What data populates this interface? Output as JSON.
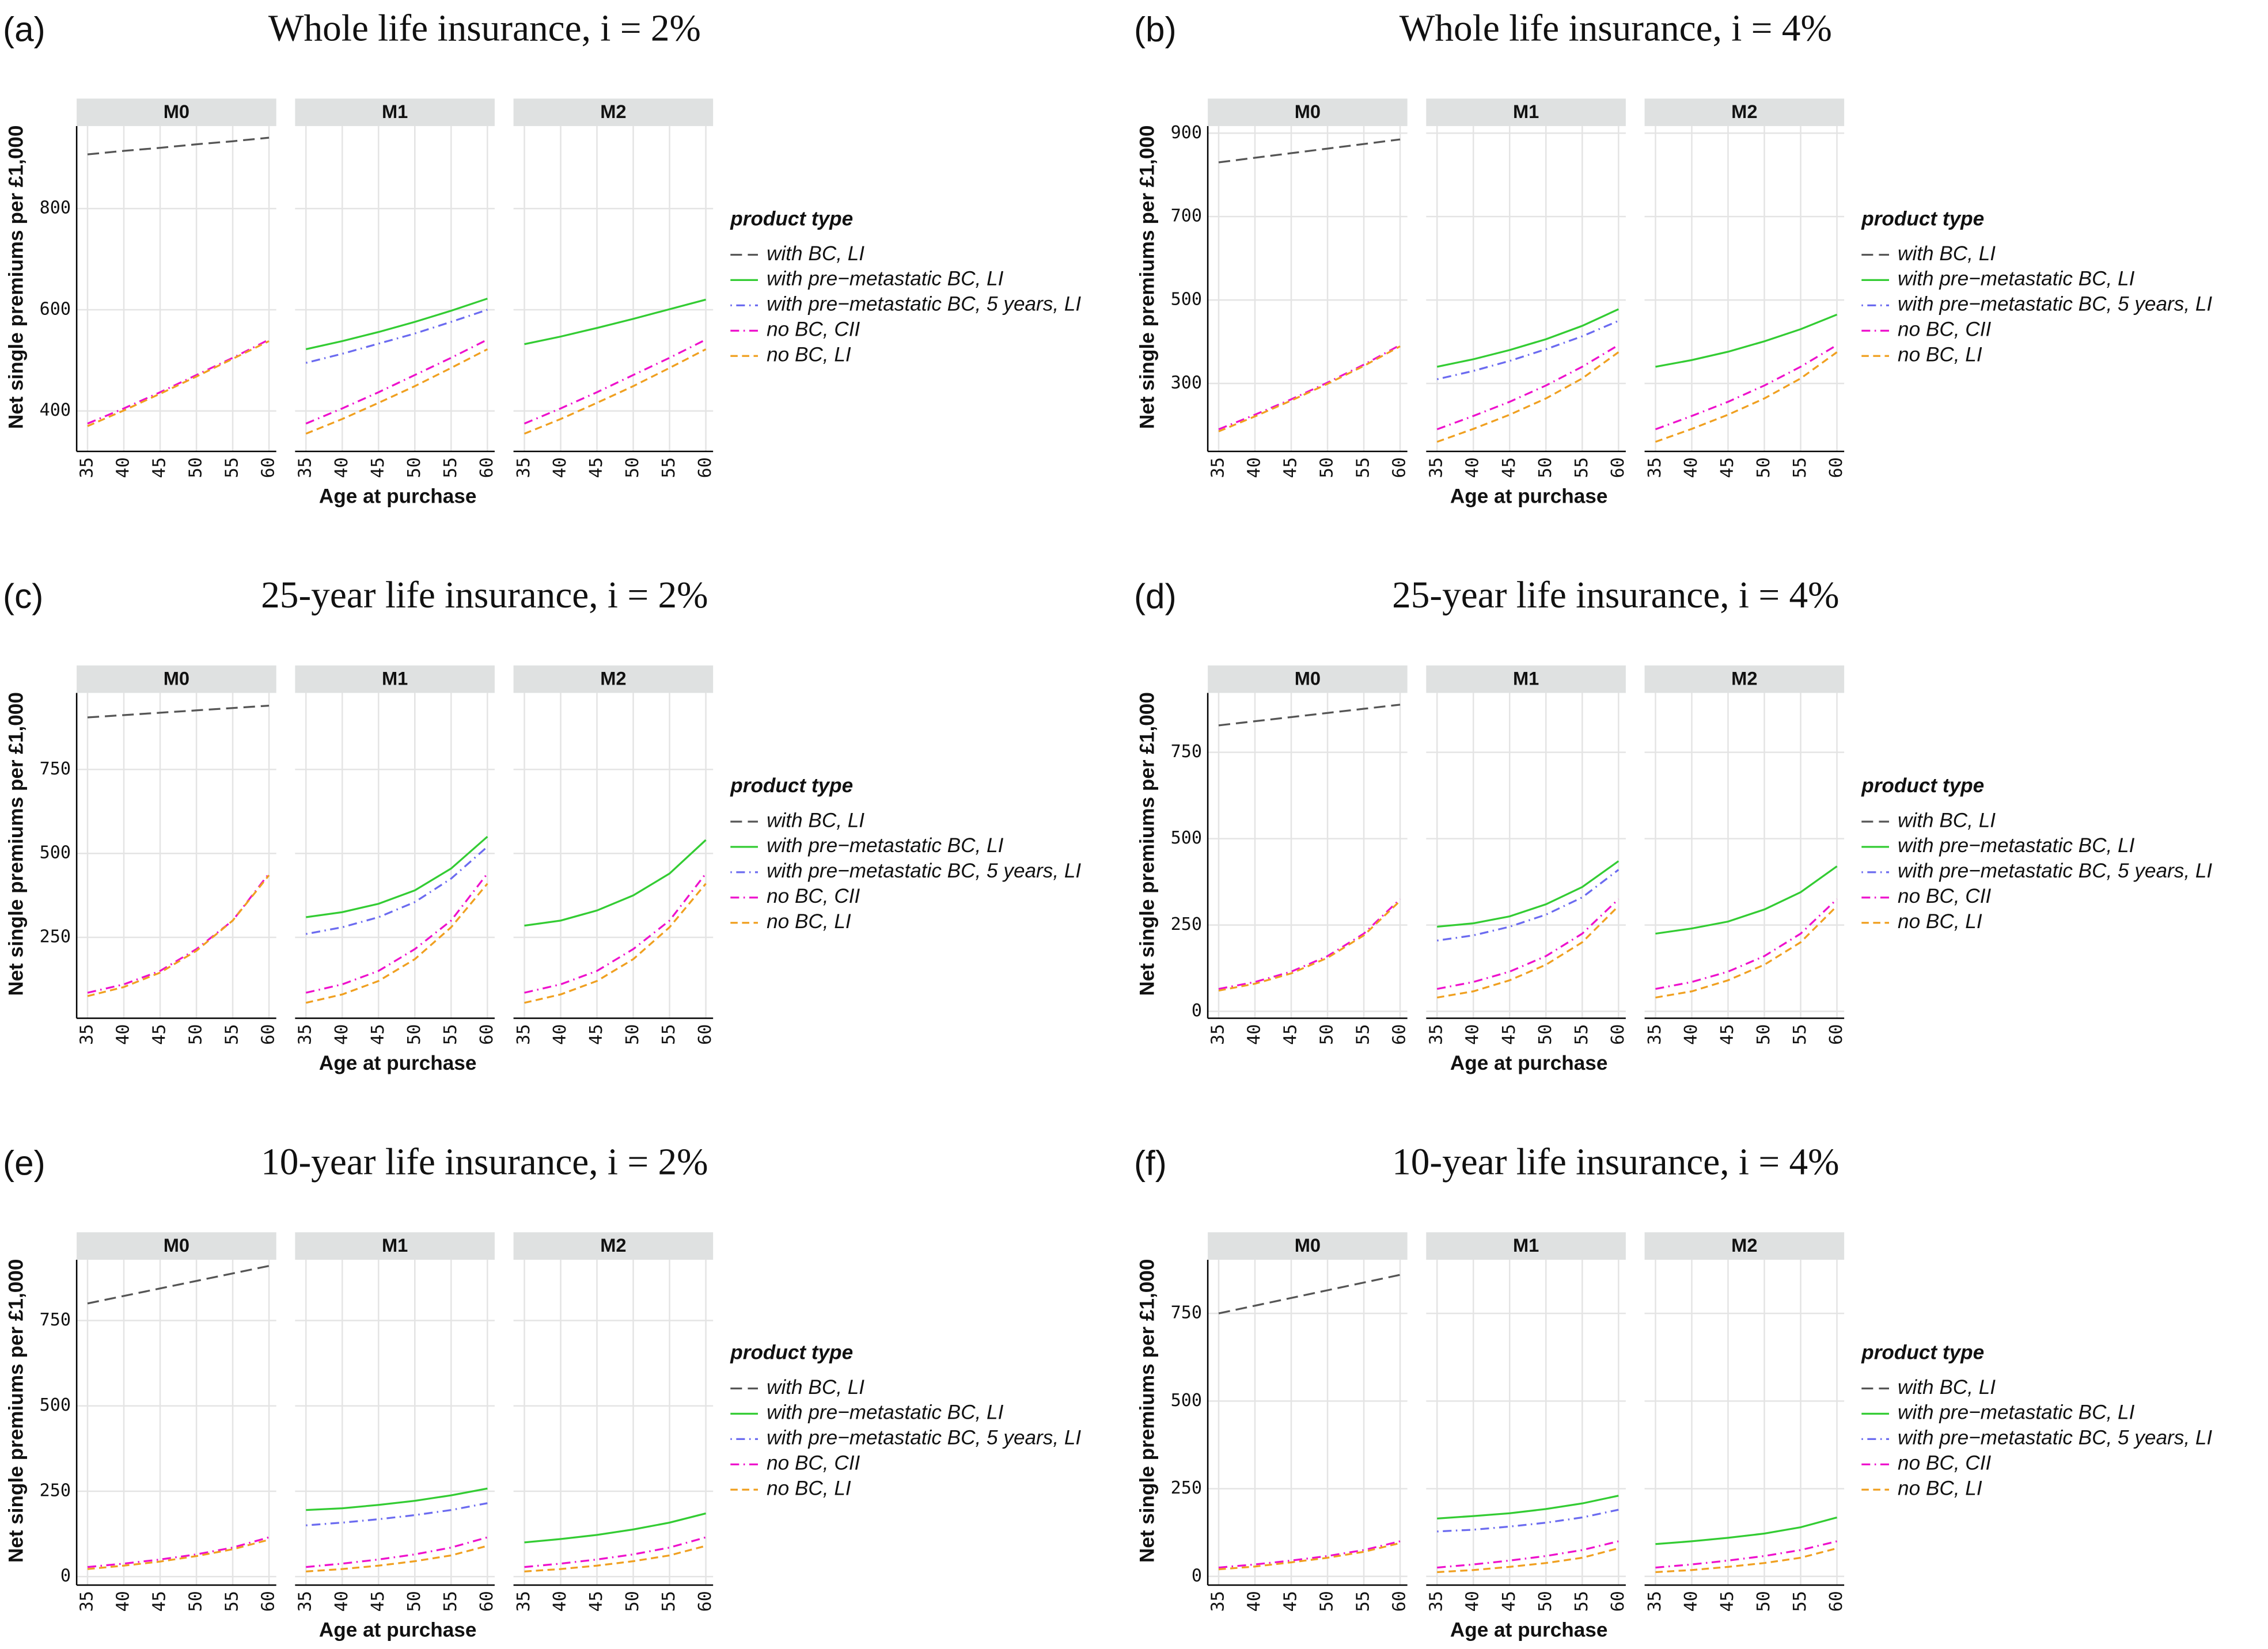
{
  "chart_data": [
    {
      "type": "line",
      "panel_label": "(a)",
      "title": "Whole life insurance, i = 2%",
      "y_label": "Net single premiums per £1,000",
      "x_label": "Age at purchase",
      "legend_title": "product type",
      "series": [
        {
          "name": "with BC, LI",
          "color": "#555555",
          "linestyle": "longdash"
        },
        {
          "name": "with pre−metastatic BC, LI",
          "color": "#33cc33",
          "linestyle": "solid"
        },
        {
          "name": "with pre−metastatic BC, 5 years, LI",
          "color": "#6b6bf0",
          "linestyle": "dotdash"
        },
        {
          "name": "no BC, CII",
          "color": "#ee11cc",
          "linestyle": "dashdot"
        },
        {
          "name": "no BC, LI",
          "color": "#f0a020",
          "linestyle": "dashed"
        }
      ],
      "x": [
        35,
        40,
        45,
        50,
        55,
        60
      ],
      "xlim": [
        33.5,
        61
      ],
      "xticks": [
        35,
        40,
        45,
        50,
        55,
        60
      ],
      "ylim": [
        320,
        963
      ],
      "yticks": [
        400,
        600,
        800
      ],
      "facets": [
        {
          "name": "M0",
          "values": [
            [
              907,
              914,
              920,
              927,
              933,
              940
            ],
            null,
            null,
            [
              375,
              405,
              437,
              471,
              505,
              541
            ],
            [
              370,
              401,
              434,
              468,
              503,
              538
            ]
          ]
        },
        {
          "name": "M1",
          "values": [
            null,
            [
              522,
              538,
              556,
              576,
              598,
              622
            ],
            [
              495,
              513,
              533,
              553,
              576,
              600
            ],
            [
              375,
              405,
              437,
              471,
              505,
              541
            ],
            [
              355,
              384,
              416,
              449,
              485,
              522
            ]
          ]
        },
        {
          "name": "M2",
          "values": [
            null,
            [
              532,
              547,
              564,
              582,
              601,
              620
            ],
            null,
            [
              375,
              405,
              437,
              471,
              505,
              541
            ],
            [
              355,
              384,
              416,
              449,
              485,
              522
            ]
          ]
        }
      ]
    },
    {
      "type": "line",
      "panel_label": "(b)",
      "title": "Whole life insurance, i = 4%",
      "y_label": "Net single premiums per £1,000",
      "x_label": "Age at purchase",
      "legend_title": "product type",
      "series": [
        {
          "name": "with BC, LI",
          "color": "#555555",
          "linestyle": "longdash"
        },
        {
          "name": "with pre−metastatic BC, LI",
          "color": "#33cc33",
          "linestyle": "solid"
        },
        {
          "name": "with pre−metastatic BC, 5 years, LI",
          "color": "#6b6bf0",
          "linestyle": "dotdash"
        },
        {
          "name": "no BC, CII",
          "color": "#ee11cc",
          "linestyle": "dashdot"
        },
        {
          "name": "no BC, LI",
          "color": "#f0a020",
          "linestyle": "dashed"
        }
      ],
      "x": [
        35,
        40,
        45,
        50,
        55,
        60
      ],
      "xlim": [
        33.5,
        61
      ],
      "xticks": [
        35,
        40,
        45,
        50,
        55,
        60
      ],
      "ylim": [
        137,
        917
      ],
      "yticks": [
        300,
        500,
        700,
        900
      ],
      "facets": [
        {
          "name": "M0",
          "values": [
            [
              830,
              841,
              852,
              863,
              874,
              885
            ],
            null,
            null,
            [
              190,
              225,
              262,
              302,
              345,
              392
            ],
            [
              185,
              221,
              259,
              299,
              342,
              389
            ]
          ]
        },
        {
          "name": "M1",
          "values": [
            null,
            [
              340,
              358,
              380,
              406,
              438,
              478
            ],
            [
              310,
              330,
              354,
              382,
              413,
              450
            ],
            [
              190,
              222,
              256,
              295,
              340,
              392
            ],
            [
              160,
              191,
              225,
              264,
              312,
              375
            ]
          ]
        },
        {
          "name": "M2",
          "values": [
            null,
            [
              340,
              356,
              376,
              401,
              430,
              465
            ],
            null,
            [
              190,
              222,
              256,
              295,
              340,
              392
            ],
            [
              160,
              191,
              225,
              264,
              312,
              375
            ]
          ]
        }
      ]
    },
    {
      "type": "line",
      "panel_label": "(c)",
      "title": "25-year life insurance, i = 2%",
      "y_label": "Net single premiums per £1,000",
      "x_label": "Age at purchase",
      "legend_title": "product type",
      "series": [
        {
          "name": "with BC, LI",
          "color": "#555555",
          "linestyle": "longdash"
        },
        {
          "name": "with pre−metastatic BC, LI",
          "color": "#33cc33",
          "linestyle": "solid"
        },
        {
          "name": "with pre−metastatic BC, 5 years, LI",
          "color": "#6b6bf0",
          "linestyle": "dotdash"
        },
        {
          "name": "no BC, CII",
          "color": "#ee11cc",
          "linestyle": "dashdot"
        },
        {
          "name": "no BC, LI",
          "color": "#f0a020",
          "linestyle": "dashed"
        }
      ],
      "x": [
        35,
        40,
        45,
        50,
        55,
        60
      ],
      "xlim": [
        33.5,
        61
      ],
      "xticks": [
        35,
        40,
        45,
        50,
        55,
        60
      ],
      "ylim": [
        9,
        978
      ],
      "yticks": [
        250,
        500,
        750
      ],
      "facets": [
        {
          "name": "M0",
          "values": [
            [
              905,
              912,
              919,
              926,
              933,
              940
            ],
            null,
            null,
            [
              85,
              110,
              150,
              215,
              300,
              440
            ],
            [
              75,
              102,
              145,
              210,
              300,
              435
            ]
          ]
        },
        {
          "name": "M1",
          "values": [
            null,
            [
              310,
              325,
              350,
              390,
              455,
              550
            ],
            [
              260,
              280,
              310,
              355,
              425,
              520
            ],
            [
              85,
              110,
              150,
              215,
              300,
              440
            ],
            [
              55,
              80,
              120,
              185,
              280,
              410
            ]
          ]
        },
        {
          "name": "M2",
          "values": [
            null,
            [
              285,
              300,
              330,
              375,
              440,
              540
            ],
            null,
            [
              85,
              110,
              150,
              215,
              300,
              440
            ],
            [
              55,
              80,
              120,
              185,
              280,
              410
            ]
          ]
        }
      ]
    },
    {
      "type": "line",
      "panel_label": "(d)",
      "title": "25-year life insurance, i = 4%",
      "y_label": "Net single premiums per £1,000",
      "x_label": "Age at purchase",
      "legend_title": "product type",
      "series": [
        {
          "name": "with BC, LI",
          "color": "#555555",
          "linestyle": "longdash"
        },
        {
          "name": "with pre−metastatic BC, LI",
          "color": "#33cc33",
          "linestyle": "solid"
        },
        {
          "name": "with pre−metastatic BC, 5 years, LI",
          "color": "#6b6bf0",
          "linestyle": "dotdash"
        },
        {
          "name": "no BC, CII",
          "color": "#ee11cc",
          "linestyle": "dashdot"
        },
        {
          "name": "no BC, LI",
          "color": "#f0a020",
          "linestyle": "dashed"
        }
      ],
      "x": [
        35,
        40,
        45,
        50,
        55,
        60
      ],
      "xlim": [
        33.5,
        61
      ],
      "xticks": [
        35,
        40,
        45,
        50,
        55,
        60
      ],
      "ylim": [
        -20,
        922
      ],
      "yticks": [
        0,
        250,
        500,
        750
      ],
      "facets": [
        {
          "name": "M0",
          "values": [
            [
              828,
              840,
              852,
              864,
              876,
              888
            ],
            null,
            null,
            [
              65,
              85,
              115,
              160,
              225,
              325
            ],
            [
              60,
              80,
              110,
              155,
              220,
              320
            ]
          ]
        },
        {
          "name": "M1",
          "values": [
            null,
            [
              245,
              255,
              275,
              310,
              360,
              435
            ],
            [
              205,
              220,
              245,
              280,
              330,
              410
            ],
            [
              65,
              85,
              115,
              160,
              225,
              325
            ],
            [
              40,
              58,
              90,
              135,
              200,
              305
            ]
          ]
        },
        {
          "name": "M2",
          "values": [
            null,
            [
              225,
              240,
              260,
              295,
              345,
              420
            ],
            null,
            [
              65,
              85,
              115,
              160,
              225,
              325
            ],
            [
              40,
              58,
              90,
              135,
              200,
              305
            ]
          ]
        }
      ]
    },
    {
      "type": "line",
      "panel_label": "(e)",
      "title": "10-year life insurance, i = 2%",
      "y_label": "Net single premiums per £1,000",
      "x_label": "Age at purchase",
      "legend_title": "product type",
      "series": [
        {
          "name": "with BC, LI",
          "color": "#555555",
          "linestyle": "longdash"
        },
        {
          "name": "with pre−metastatic BC, LI",
          "color": "#33cc33",
          "linestyle": "solid"
        },
        {
          "name": "with pre−metastatic BC, 5 years, LI",
          "color": "#6b6bf0",
          "linestyle": "dotdash"
        },
        {
          "name": "no BC, CII",
          "color": "#ee11cc",
          "linestyle": "dashdot"
        },
        {
          "name": "no BC, LI",
          "color": "#f0a020",
          "linestyle": "dashed"
        }
      ],
      "x": [
        35,
        40,
        45,
        50,
        55,
        60
      ],
      "xlim": [
        33.5,
        61
      ],
      "xticks": [
        35,
        40,
        45,
        50,
        55,
        60
      ],
      "ylim": [
        -25,
        928
      ],
      "yticks": [
        0,
        250,
        500,
        750
      ],
      "facets": [
        {
          "name": "M0",
          "values": [
            [
              800,
              822,
              844,
              866,
              888,
              910
            ],
            null,
            null,
            [
              28,
              38,
              50,
              65,
              85,
              115
            ],
            [
              22,
              32,
              44,
              60,
              80,
              108
            ]
          ]
        },
        {
          "name": "M1",
          "values": [
            null,
            [
              195,
              200,
              210,
              222,
              238,
              258
            ],
            [
              150,
              158,
              168,
              180,
              195,
              215
            ],
            [
              28,
              38,
              50,
              65,
              85,
              115
            ],
            [
              15,
              22,
              32,
              45,
              62,
              90
            ]
          ]
        },
        {
          "name": "M2",
          "values": [
            null,
            [
              100,
              110,
              122,
              138,
              158,
              185
            ],
            null,
            [
              28,
              38,
              50,
              65,
              85,
              115
            ],
            [
              15,
              22,
              32,
              45,
              62,
              90
            ]
          ]
        }
      ]
    },
    {
      "type": "line",
      "panel_label": "(f)",
      "title": "10-year life insurance, i = 4%",
      "y_label": "Net single premiums per £1,000",
      "x_label": "Age at purchase",
      "legend_title": "product type",
      "series": [
        {
          "name": "with BC, LI",
          "color": "#555555",
          "linestyle": "longdash"
        },
        {
          "name": "with pre−metastatic BC, LI",
          "color": "#33cc33",
          "linestyle": "solid"
        },
        {
          "name": "with pre−metastatic BC, 5 years, LI",
          "color": "#6b6bf0",
          "linestyle": "dotdash"
        },
        {
          "name": "no BC, CII",
          "color": "#ee11cc",
          "linestyle": "dashdot"
        },
        {
          "name": "no BC, LI",
          "color": "#f0a020",
          "linestyle": "dashed"
        }
      ],
      "x": [
        35,
        40,
        45,
        50,
        55,
        60
      ],
      "xlim": [
        33.5,
        61
      ],
      "xticks": [
        35,
        40,
        45,
        50,
        55,
        60
      ],
      "ylim": [
        -25,
        903
      ],
      "yticks": [
        0,
        250,
        500,
        750
      ],
      "facets": [
        {
          "name": "M0",
          "values": [
            [
              750,
              772,
              794,
              816,
              838,
              860
            ],
            null,
            null,
            [
              25,
              34,
              45,
              58,
              75,
              100
            ],
            [
              20,
              28,
              40,
              53,
              70,
              95
            ]
          ]
        },
        {
          "name": "M1",
          "values": [
            null,
            [
              165,
              172,
              180,
              192,
              208,
              230
            ],
            [
              128,
              133,
              142,
              153,
              168,
              190
            ],
            [
              25,
              34,
              45,
              58,
              75,
              100
            ],
            [
              12,
              18,
              27,
              38,
              53,
              80
            ]
          ]
        },
        {
          "name": "M2",
          "values": [
            null,
            [
              92,
              100,
              110,
              122,
              140,
              168
            ],
            null,
            [
              25,
              34,
              45,
              58,
              75,
              100
            ],
            [
              12,
              18,
              27,
              38,
              53,
              80
            ]
          ]
        }
      ]
    }
  ]
}
